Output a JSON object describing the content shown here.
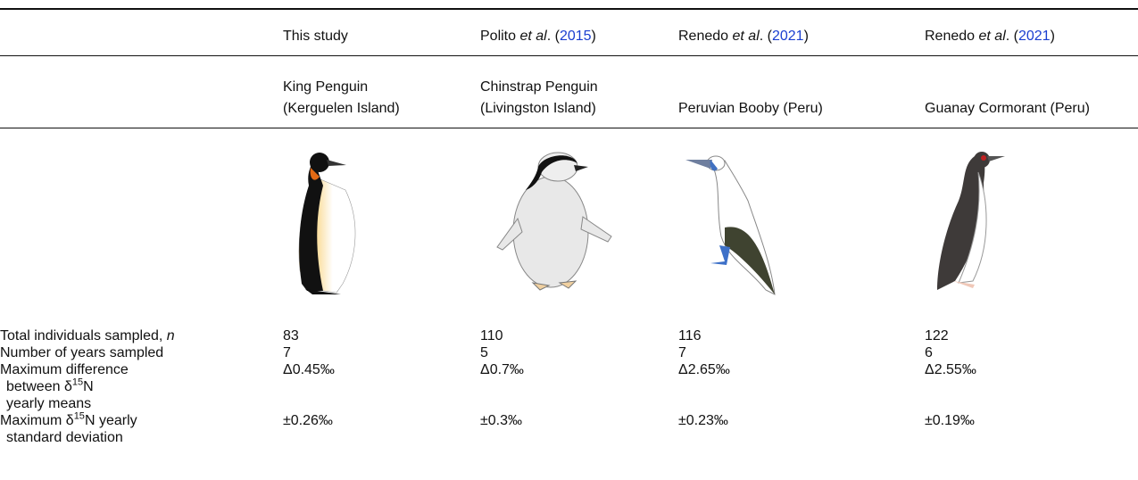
{
  "columns": [
    {
      "source": [
        {
          "text": "This study"
        }
      ],
      "species": [
        "King Penguin",
        "(Kerguelen Island)"
      ]
    },
    {
      "source": [
        {
          "text": "Polito "
        },
        {
          "text": "et al",
          "style": "italic"
        },
        {
          "text": ". ("
        },
        {
          "text": "2015",
          "style": "link"
        },
        {
          "text": ")"
        }
      ],
      "species": [
        "Chinstrap Penguin",
        "(Livingston Island)"
      ]
    },
    {
      "source": [
        {
          "text": "Renedo "
        },
        {
          "text": "et al",
          "style": "italic"
        },
        {
          "text": ". ("
        },
        {
          "text": "2021",
          "style": "link"
        },
        {
          "text": ")"
        }
      ],
      "species": [
        "Peruvian Booby (Peru)"
      ]
    },
    {
      "source": [
        {
          "text": "Renedo "
        },
        {
          "text": "et al",
          "style": "italic"
        },
        {
          "text": ". ("
        },
        {
          "text": "2021",
          "style": "link"
        },
        {
          "text": ")"
        }
      ],
      "species": [
        "Guanay Cormorant (Peru)"
      ]
    }
  ],
  "rows": [
    {
      "label": [
        [
          {
            "text": "Total individuals sampled, "
          },
          {
            "text": "n",
            "style": "italic"
          }
        ]
      ],
      "values": [
        83,
        110,
        116,
        122
      ]
    },
    {
      "label": [
        [
          {
            "text": "Number of years sampled"
          }
        ]
      ],
      "values": [
        7,
        5,
        7,
        6
      ]
    },
    {
      "label": [
        [
          {
            "text": "Maximum difference"
          }
        ],
        [
          {
            "text": "between δ"
          },
          {
            "text": "15",
            "style": "sup"
          },
          {
            "text": "N"
          }
        ],
        [
          {
            "text": "yearly means"
          }
        ]
      ],
      "values": [
        "Δ0.45‰",
        "Δ0.7‰",
        "Δ2.65‰",
        "Δ2.55‰"
      ]
    },
    {
      "label": [
        [
          {
            "text": "Maximum δ"
          },
          {
            "text": "15",
            "style": "sup"
          },
          {
            "text": "N yearly"
          }
        ],
        [
          {
            "text": "standard deviation"
          }
        ]
      ],
      "values": [
        "±0.26‰",
        "±0.3‰",
        "±0.23‰",
        "±0.19‰"
      ]
    }
  ]
}
